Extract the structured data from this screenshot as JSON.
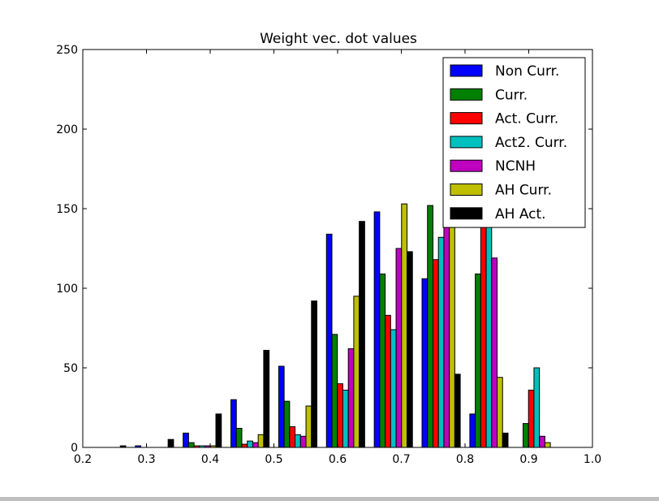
{
  "chart_data": {
    "type": "bar",
    "title": "Weight vec. dot values",
    "xlabel": "",
    "ylabel": "",
    "xlim": [
      0.2,
      1.0
    ],
    "ylim": [
      0,
      250
    ],
    "xticks": [
      "0.2",
      "0.3",
      "0.4",
      "0.5",
      "0.6",
      "0.7",
      "0.8",
      "0.9",
      "1.0"
    ],
    "yticks": [
      "0",
      "50",
      "100",
      "150",
      "200",
      "250"
    ],
    "grid": false,
    "legend_position": "top-right",
    "bins": [
      0.2,
      0.275,
      0.35,
      0.425,
      0.5,
      0.575,
      0.65,
      0.725,
      0.8,
      0.875,
      0.95
    ],
    "series": [
      {
        "name": "Non Curr.",
        "color": "#0000ff",
        "values": [
          0,
          1,
          9,
          30,
          51,
          134,
          148,
          106,
          21,
          0,
          0
        ]
      },
      {
        "name": "Curr.",
        "color": "#008000",
        "values": [
          0,
          0,
          3,
          12,
          29,
          71,
          109,
          152,
          109,
          15,
          0
        ]
      },
      {
        "name": "Act. Curr.",
        "color": "#ff0000",
        "values": [
          0,
          0,
          1,
          2,
          13,
          40,
          83,
          118,
          140,
          36,
          0
        ]
      },
      {
        "name": "Act2. Curr.",
        "color": "#00bfbf",
        "values": [
          0,
          0,
          1,
          4,
          8,
          36,
          74,
          132,
          145,
          50,
          0
        ]
      },
      {
        "name": "NCNH",
        "color": "#bf00bf",
        "values": [
          0,
          0,
          1,
          3,
          7,
          62,
          125,
          176,
          119,
          7,
          0
        ]
      },
      {
        "name": "AH Curr.",
        "color": "#bfbf00",
        "values": [
          0,
          0,
          1,
          8,
          26,
          95,
          153,
          170,
          44,
          3,
          0
        ]
      },
      {
        "name": "AH Act.",
        "color": "#000000",
        "values": [
          1,
          5,
          21,
          61,
          92,
          142,
          123,
          46,
          9,
          0,
          0
        ]
      }
    ]
  }
}
